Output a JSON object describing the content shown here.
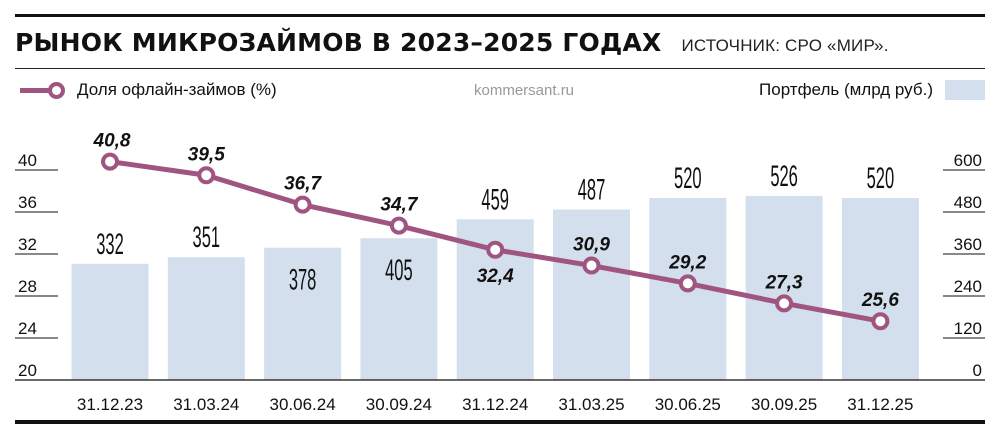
{
  "header": {
    "title": "РЫНОК МИКРОЗАЙМОВ В 2023–2025 ГОДАХ",
    "source": "ИСТОЧНИК: СРО «МИР»."
  },
  "legend": {
    "line_label": "Доля офлайн-займов (%)",
    "bar_label": "Портфель (млрд руб.)",
    "watermark": "kommersant.ru"
  },
  "colors": {
    "line": "#a05580",
    "bar": "#d3dfec",
    "text": "#111111"
  },
  "chart_data": {
    "type": "bar+line",
    "title": "РЫНОК МИКРОЗАЙМОВ В 2023–2025 ГОДАХ",
    "subtitle": "ИСТОЧНИК: СРО «МИР».",
    "categories": [
      "31.12.23",
      "31.03.24",
      "30.06.24",
      "30.09.24",
      "31.12.24",
      "31.03.25",
      "30.06.25",
      "30.09.25",
      "31.12.25"
    ],
    "series": [
      {
        "name": "Портфель (млрд руб.)",
        "type": "bar",
        "axis": "right",
        "values": [
          332,
          351,
          378,
          405,
          459,
          487,
          520,
          526,
          520
        ],
        "labels": [
          "332",
          "351",
          "378",
          "405",
          "459",
          "487",
          "520",
          "526",
          "520"
        ]
      },
      {
        "name": "Доля офлайн-займов (%)",
        "type": "line",
        "axis": "left",
        "values": [
          40.8,
          39.5,
          36.7,
          34.7,
          32.4,
          30.9,
          29.2,
          27.3,
          25.6
        ],
        "labels": [
          "40,8",
          "39,5",
          "36,7",
          "34,7",
          "32,4",
          "30,9",
          "29,2",
          "27,3",
          "25,6"
        ]
      }
    ],
    "left_axis": {
      "ticks": [
        "20",
        "24",
        "28",
        "32",
        "36",
        "40"
      ],
      "range": [
        20,
        40
      ]
    },
    "right_axis": {
      "ticks": [
        "0",
        "120",
        "240",
        "360",
        "480",
        "600"
      ],
      "range": [
        0,
        600
      ]
    },
    "grid": false,
    "legend_position": "top"
  }
}
